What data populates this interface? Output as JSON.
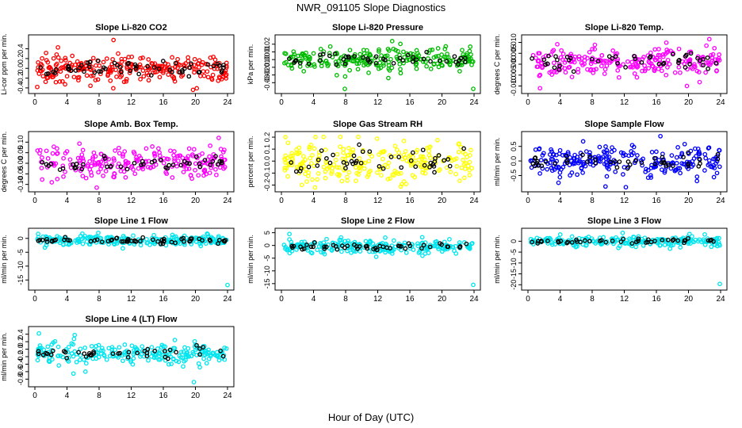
{
  "figure": {
    "title": "NWR_091105  Slope Diagnostics",
    "xlabel": "Hour of Day (UTC)"
  },
  "chart_data": [
    {
      "type": "scatter",
      "title": "Slope Li-820 CO2",
      "ylabel": "Li-cor ppm per min.",
      "color": "#ff0000",
      "xlim": [
        0,
        24
      ],
      "xticks": [
        0,
        4,
        8,
        12,
        16,
        20,
        24
      ],
      "ylim": [
        -0.45,
        0.62
      ],
      "yticks": [
        -0.4,
        -0.2,
        0.0,
        0.2,
        0.4
      ],
      "ytick_labels": [
        "-0.4",
        "-0.2",
        "0.0",
        "0.2",
        "0.4"
      ],
      "cluster": {
        "center": 0.0,
        "spread": 0.13
      },
      "outliers": [
        {
          "x": 9.8,
          "y": 0.58
        },
        {
          "x": 0.3,
          "y": -0.38
        },
        {
          "x": 19.7,
          "y": -0.44
        }
      ],
      "n_points": 260,
      "n_black": 60
    },
    {
      "type": "scatter",
      "title": "Slope Li-820 Pressure",
      "ylabel": "kPa per min.",
      "color": "#00bb00",
      "xlim": [
        0,
        24
      ],
      "xticks": [
        0,
        4,
        8,
        12,
        16,
        20,
        24
      ],
      "ylim": [
        -0.04,
        0.028
      ],
      "yticks": [
        -0.03,
        -0.02,
        -0.01,
        0.0,
        0.01,
        0.02
      ],
      "ytick_labels": [
        "-0.03",
        "-0.02",
        "-0.01",
        "0.00",
        "0.01",
        "0.02"
      ],
      "cluster": {
        "center": 0.0,
        "spread": 0.008
      },
      "outliers": [
        {
          "x": 7.9,
          "y": -0.038
        },
        {
          "x": 23.9,
          "y": -0.038
        },
        {
          "x": 13.8,
          "y": 0.024
        }
      ],
      "n_points": 230,
      "n_black": 45
    },
    {
      "type": "scatter",
      "title": "Slope Li-820 Temp.",
      "ylabel": "degrees C per min.",
      "color": "#ff00ff",
      "xlim": [
        0,
        24
      ],
      "xticks": [
        0,
        4,
        8,
        12,
        16,
        20,
        24
      ],
      "ylim": [
        -0.012,
        0.012
      ],
      "yticks": [
        -0.01,
        -0.005,
        0.0,
        0.005,
        0.01
      ],
      "ytick_labels": [
        "-0.010",
        "-0.005",
        "0.000",
        "0.005",
        "0.010"
      ],
      "cluster": {
        "center": 0.0012,
        "spread": 0.0033
      },
      "outliers": [
        {
          "x": 1.5,
          "y": -0.011
        },
        {
          "x": 19.8,
          "y": -0.01
        },
        {
          "x": 22.6,
          "y": 0.0115
        }
      ],
      "n_points": 230,
      "n_black": 45
    },
    {
      "type": "scatter",
      "title": "Slope Amb. Box Temp.",
      "ylabel": "degrees C per min.",
      "color": "#ff00ff",
      "xlim": [
        0,
        24
      ],
      "xticks": [
        0,
        4,
        8,
        12,
        16,
        20,
        24
      ],
      "ylim": [
        -0.12,
        0.135
      ],
      "yticks": [
        -0.1,
        -0.05,
        0.0,
        0.05,
        0.1
      ],
      "ytick_labels": [
        "-0.10",
        "-0.05",
        "0.00",
        "0.05",
        "0.10"
      ],
      "cluster": {
        "center": 0.0,
        "spread": 0.035
      },
      "outliers": [
        {
          "x": 7.7,
          "y": -0.115
        },
        {
          "x": 22.9,
          "y": 0.12
        },
        {
          "x": 2.1,
          "y": -0.09
        }
      ],
      "n_points": 230,
      "n_black": 45
    },
    {
      "type": "scatter",
      "title": "Slope Gas Stream RH",
      "ylabel": "percent per min.",
      "color": "#ffff00",
      "xlim": [
        0,
        24
      ],
      "xticks": [
        0,
        4,
        8,
        12,
        16,
        20,
        24
      ],
      "ylim": [
        -0.23,
        0.22
      ],
      "yticks": [
        -0.2,
        -0.1,
        0.0,
        0.1,
        0.2
      ],
      "ytick_labels": [
        "-0.2",
        "-0.1",
        "0.0",
        "0.1",
        "0.2"
      ],
      "cluster": {
        "center": 0.0,
        "spread": 0.09
      },
      "outliers": [
        {
          "x": 4.2,
          "y": -0.22
        },
        {
          "x": 0.5,
          "y": 0.2
        }
      ],
      "n_points": 240,
      "n_black": 45
    },
    {
      "type": "scatter",
      "title": "Slope Sample Flow",
      "ylabel": "ml/min per min.",
      "color": "#0000ff",
      "xlim": [
        0,
        24
      ],
      "xticks": [
        0,
        4,
        8,
        12,
        16,
        20,
        24
      ],
      "ylim": [
        -0.95,
        0.9
      ],
      "yticks": [
        -0.5,
        0.0,
        0.5
      ],
      "ytick_labels": [
        "-0.5",
        "0.0",
        "0.5"
      ],
      "cluster": {
        "center": 0.0,
        "spread": 0.25
      },
      "outliers": [
        {
          "x": 12.2,
          "y": -0.9
        },
        {
          "x": 3.8,
          "y": -0.75
        },
        {
          "x": 16.5,
          "y": 0.85
        }
      ],
      "n_points": 240,
      "n_black": 45
    },
    {
      "type": "scatter",
      "title": "Slope Line 1 Flow",
      "ylabel": "ml/min per min.",
      "color": "#00e5ee",
      "xlim": [
        0,
        24
      ],
      "xticks": [
        0,
        4,
        8,
        12,
        16,
        20,
        24
      ],
      "ylim": [
        -17.5,
        2.5
      ],
      "yticks": [
        -15,
        -10,
        -5,
        0
      ],
      "ytick_labels": [
        "-15",
        "-10",
        "-5",
        "0"
      ],
      "cluster": {
        "center": -0.8,
        "spread": 0.9
      },
      "outliers": [
        {
          "x": 24.0,
          "y": -16.8
        },
        {
          "x": 7.9,
          "y": 2.0
        }
      ],
      "n_points": 230,
      "n_black": 60
    },
    {
      "type": "scatter",
      "title": "Slope Line 2 Flow",
      "ylabel": "ml/min per min.",
      "color": "#00e5ee",
      "xlim": [
        0,
        24
      ],
      "xticks": [
        0,
        4,
        8,
        12,
        16,
        20,
        24
      ],
      "ylim": [
        -16.3,
        5.5
      ],
      "yticks": [
        -15,
        -10,
        -5,
        0,
        5
      ],
      "ytick_labels": [
        "-15",
        "-10",
        "-5",
        "0",
        "5"
      ],
      "cluster": {
        "center": -0.5,
        "spread": 1.3
      },
      "outliers": [
        {
          "x": 23.9,
          "y": -15.5
        },
        {
          "x": 1.0,
          "y": 4.5
        }
      ],
      "n_points": 230,
      "n_black": 50
    },
    {
      "type": "scatter",
      "title": "Slope Line 3 Flow",
      "ylabel": "ml/min per min.",
      "color": "#00e5ee",
      "xlim": [
        0,
        24
      ],
      "xticks": [
        0,
        4,
        8,
        12,
        16,
        20,
        24
      ],
      "ylim": [
        -21,
        4.5
      ],
      "yticks": [
        -20,
        -15,
        -10,
        -5,
        0
      ],
      "ytick_labels": [
        "-20",
        "-15",
        "-10",
        "-5",
        "0"
      ],
      "cluster": {
        "center": 0.0,
        "spread": 1.1
      },
      "outliers": [
        {
          "x": 23.9,
          "y": -19.6
        },
        {
          "x": 11.8,
          "y": 3.8
        }
      ],
      "n_points": 230,
      "n_black": 45
    },
    {
      "type": "scatter",
      "title": "Slope Line 4 (LT) Flow",
      "ylabel": "ml/min per min.",
      "color": "#00e5ee",
      "xlim": [
        0,
        24
      ],
      "xticks": [
        0,
        4,
        8,
        12,
        16,
        20,
        24
      ],
      "ylim": [
        -0.92,
        0.52
      ],
      "yticks": [
        -0.8,
        -0.6,
        -0.4,
        -0.2,
        0.0,
        0.2,
        0.4
      ],
      "ytick_labels": [
        "-0.8",
        "-0.6",
        "-0.4",
        "-0.2",
        "0.0",
        "0.2",
        "0.4"
      ],
      "cluster": {
        "center": -0.1,
        "spread": 0.14
      },
      "outliers": [
        {
          "x": 19.8,
          "y": -0.88
        },
        {
          "x": 0.5,
          "y": 0.42
        },
        {
          "x": 4.8,
          "y": -0.65
        },
        {
          "x": 6.3,
          "y": -0.6
        }
      ],
      "n_points": 230,
      "n_black": 40
    }
  ]
}
